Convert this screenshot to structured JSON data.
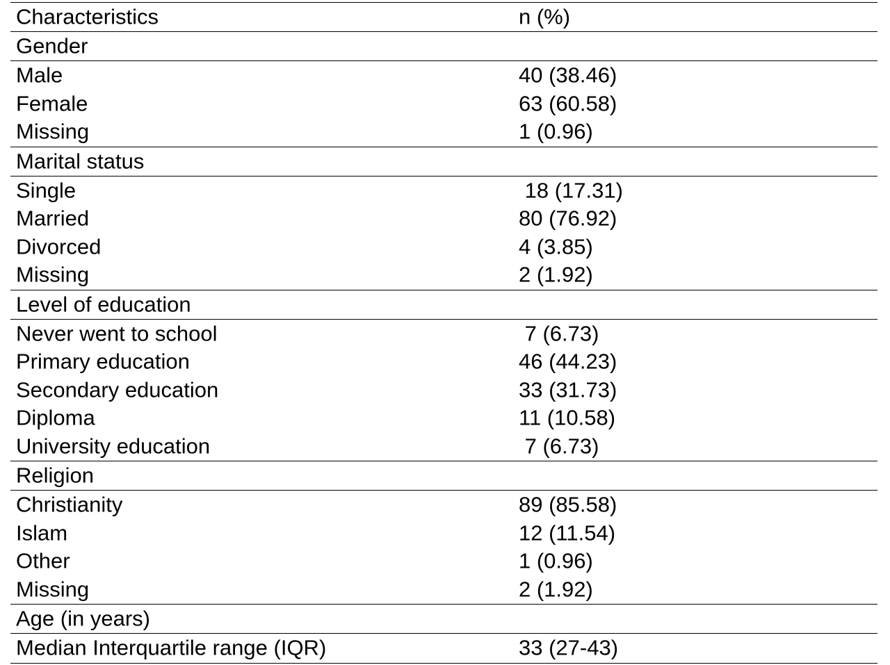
{
  "table": {
    "header": [
      "Characteristics",
      "n (%)"
    ],
    "sections": [
      {
        "title": "Gender",
        "rows": [
          [
            "Male",
            "40 (38.46)"
          ],
          [
            "Female",
            "63 (60.58)"
          ],
          [
            "Missing",
            "1 (0.96)"
          ]
        ]
      },
      {
        "title": "Marital status",
        "rows": [
          [
            "Single",
            " 18 (17.31)"
          ],
          [
            "Married",
            "80 (76.92)"
          ],
          [
            "Divorced",
            "4 (3.85)"
          ],
          [
            "Missing",
            "2 (1.92)"
          ]
        ]
      },
      {
        "title": "Level of education",
        "rows": [
          [
            "Never went to school",
            " 7 (6.73)"
          ],
          [
            "Primary education",
            "46 (44.23)"
          ],
          [
            "Secondary education",
            "33 (31.73)"
          ],
          [
            "Diploma",
            "11 (10.58)"
          ],
          [
            "University education",
            " 7 (6.73)"
          ]
        ]
      },
      {
        "title": "Religion",
        "rows": [
          [
            "Christianity",
            "89 (85.58)"
          ],
          [
            "Islam",
            "12 (11.54)"
          ],
          [
            "Other",
            "1 (0.96)"
          ],
          [
            "Missing",
            "2 (1.92)"
          ]
        ]
      },
      {
        "title": "Age (in years)",
        "rows": [
          [
            "Median Interquartile range (IQR)",
            "33 (27-43)"
          ]
        ]
      }
    ]
  }
}
